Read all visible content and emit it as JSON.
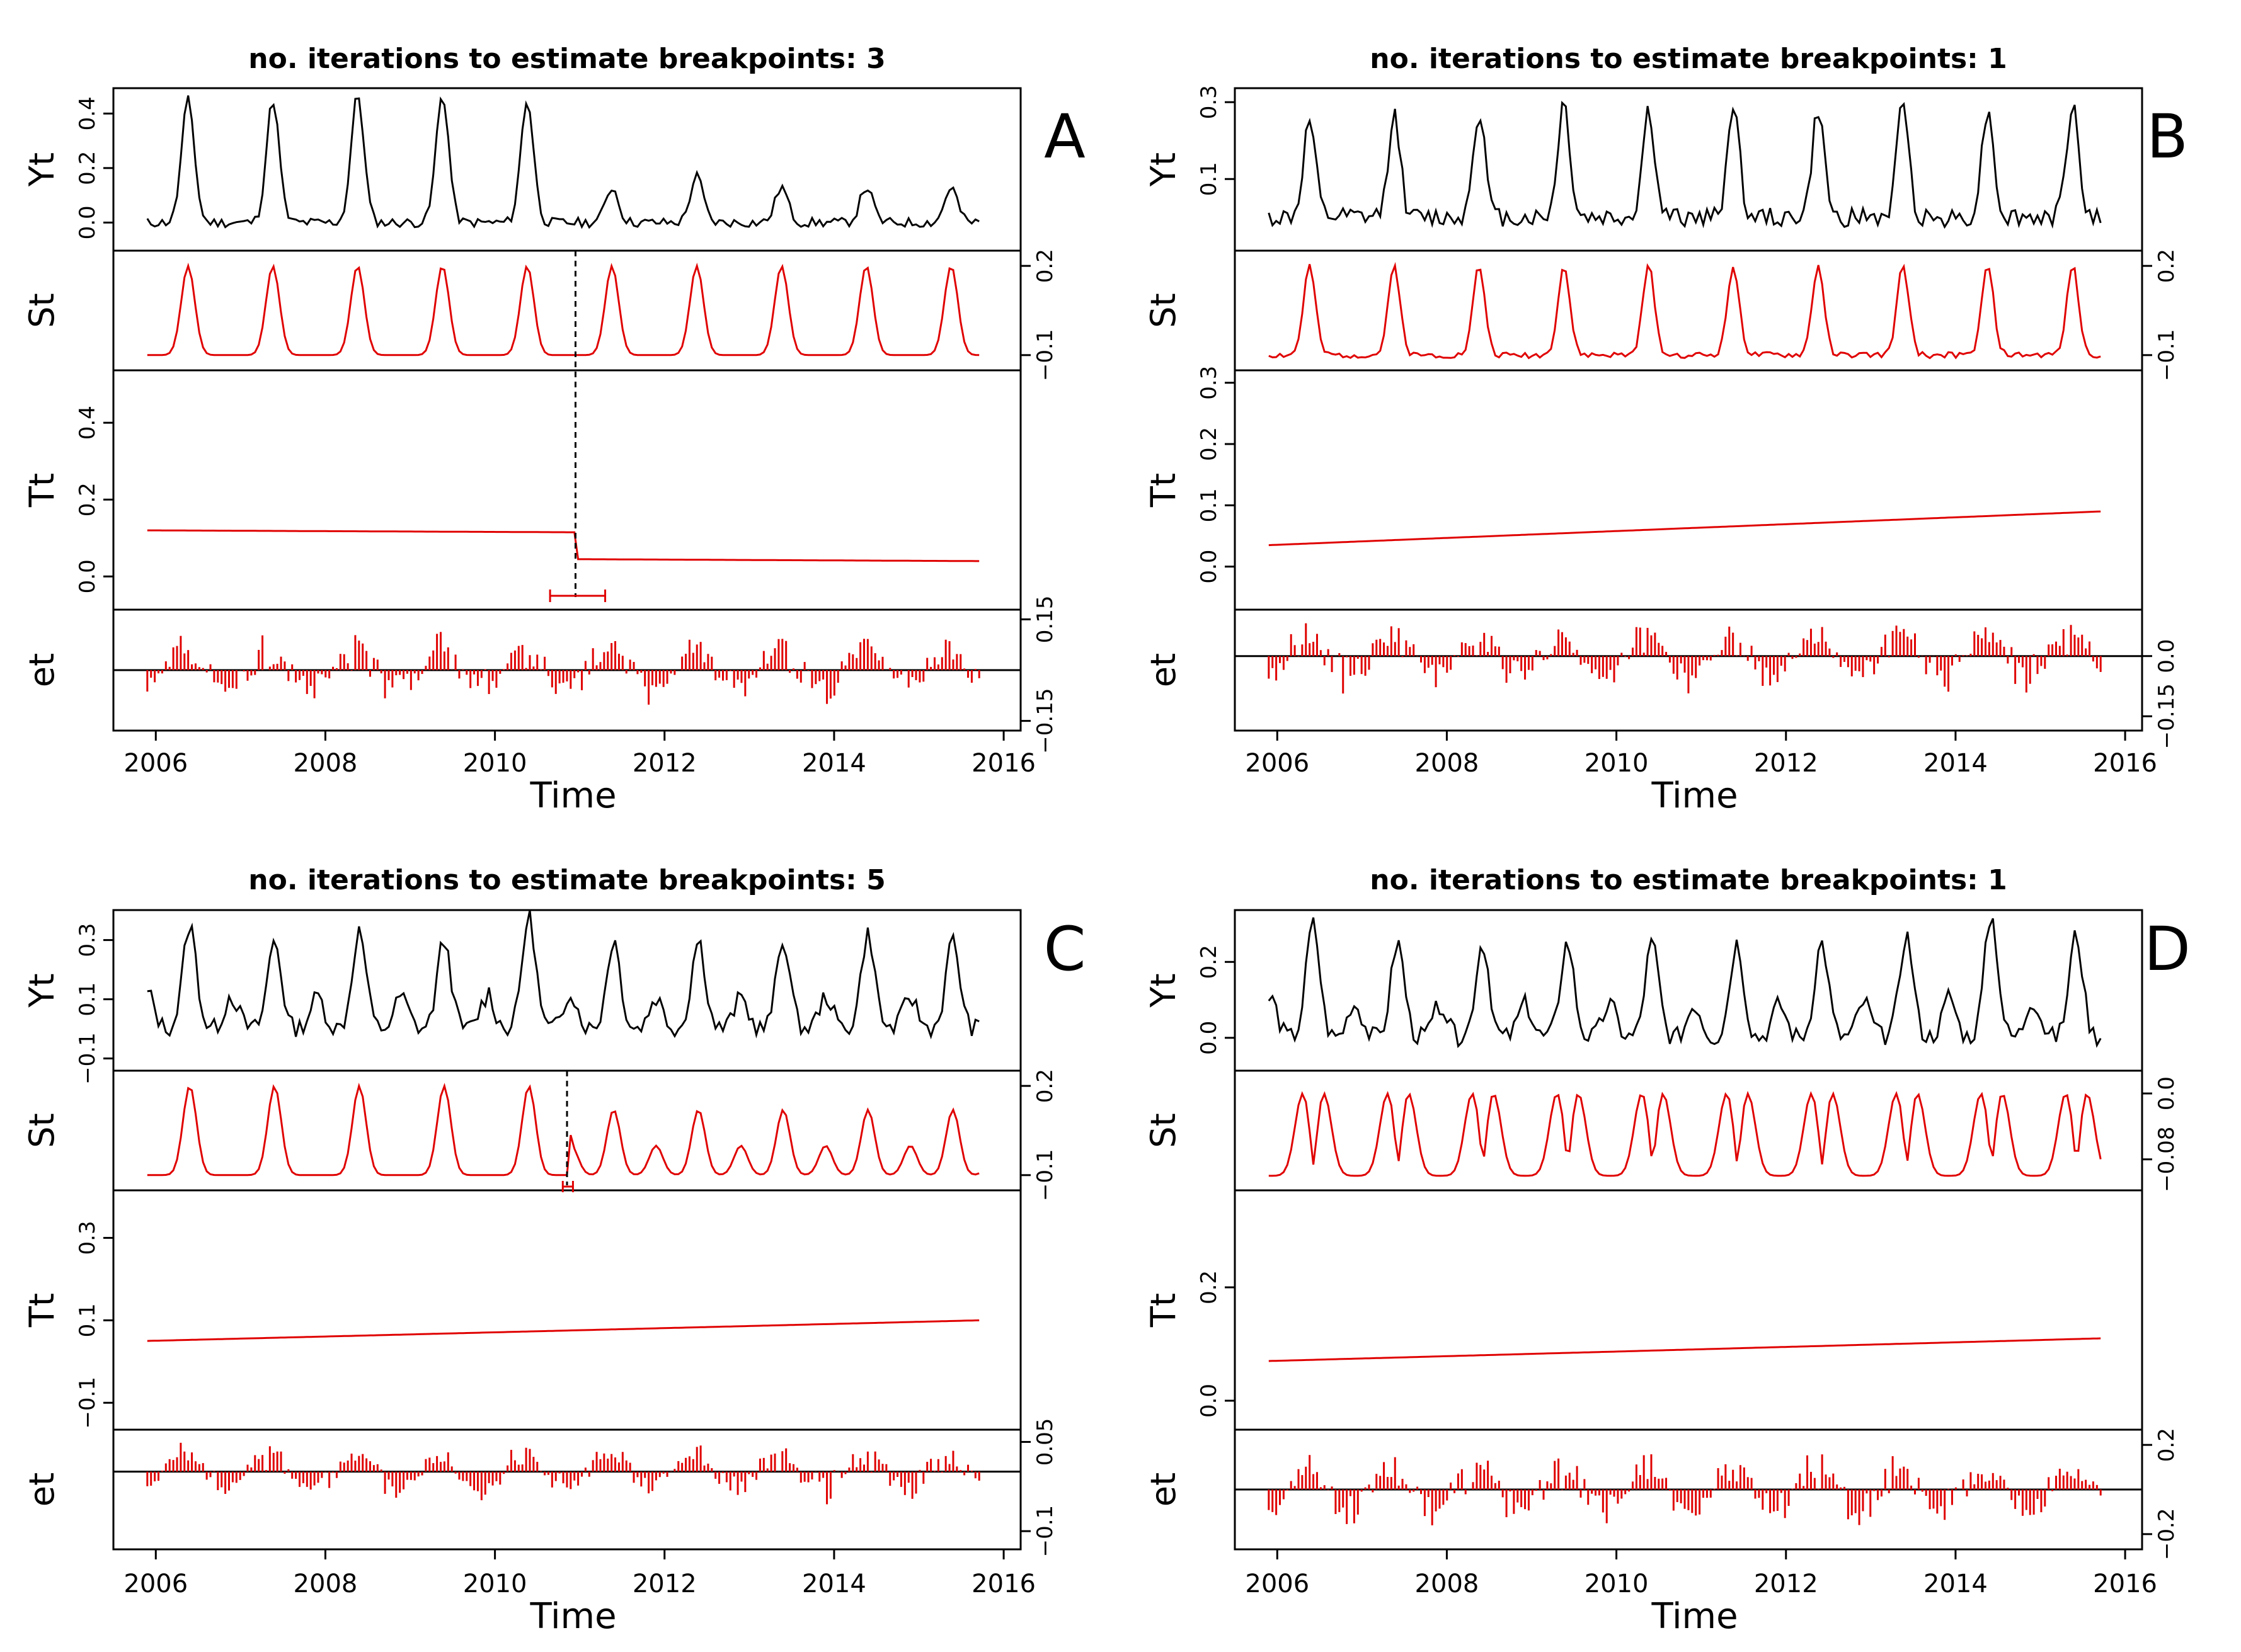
{
  "chart_data": [
    {
      "panel": "A",
      "type": "line",
      "title": "no. iterations to estimate breakpoints: 3",
      "xlabel": "Time",
      "xlim": [
        2005.5,
        2016.2
      ],
      "x_ticks": [
        2006,
        2008,
        2010,
        2012,
        2014,
        2016
      ],
      "start": 2005.9,
      "end": 2015.75,
      "step": 0.0438,
      "subplots": [
        {
          "label": "Yt",
          "side": "left",
          "ylim": [
            -0.08,
            0.47
          ],
          "ticks": [
            0.0,
            0.2,
            0.4
          ],
          "series": {
            "style": "black-line",
            "mode": "seasonal",
            "amps": [
              0.45,
              0.45,
              0.47,
              0.47,
              0.45,
              0.13,
              0.17,
              0.13,
              0.13,
              0.13
            ],
            "base": 0.0,
            "peak": 0.38,
            "width": 0.075,
            "shape": "single",
            "noise": 0.018,
            "seed": 11
          }
        },
        {
          "label": "St",
          "side": "right",
          "ylim": [
            -0.13,
            0.23
          ],
          "ticks": [
            -0.1,
            0.2
          ],
          "series": {
            "style": "red-line",
            "mode": "seasonal",
            "amps": [
              0.3,
              0.3,
              0.3,
              0.3,
              0.3,
              0.3,
              0.3,
              0.3,
              0.3,
              0.3
            ],
            "base": -0.1,
            "peak": 0.38,
            "width": 0.08,
            "shape": "single",
            "noise": 0,
            "seed": 1
          }
        },
        {
          "label": "Tt",
          "side": "left",
          "ylim": [
            -0.07,
            0.52
          ],
          "ticks": [
            0.0,
            0.2,
            0.4
          ],
          "series": {
            "style": "red-line",
            "mode": "trend",
            "breaks": [
              {
                "x": 2010.95,
                "before": [
                  0.12,
                  0.115
                ],
                "after": [
                  0.045,
                  0.04
                ]
              }
            ]
          },
          "breakpoints": [
            {
              "x": 2010.95,
              "ci": [
                2010.65,
                2011.3
              ]
            }
          ]
        },
        {
          "label": "et",
          "side": "right",
          "ylim": [
            -0.16,
            0.16
          ],
          "ticks": [
            -0.15,
            0.15
          ],
          "series": {
            "style": "red-bars",
            "mode": "residual",
            "amp": 0.1,
            "seed": 21
          }
        }
      ]
    },
    {
      "panel": "B",
      "type": "line",
      "title": "no. iterations to estimate breakpoints: 1",
      "xlabel": "Time",
      "xlim": [
        2005.5,
        2016.2
      ],
      "x_ticks": [
        2006,
        2008,
        2010,
        2012,
        2014,
        2016
      ],
      "start": 2005.9,
      "end": 2015.75,
      "step": 0.0438,
      "subplots": [
        {
          "label": "Yt",
          "side": "left",
          "ylim": [
            -0.07,
            0.32
          ],
          "ticks": [
            0.1,
            0.3
          ],
          "series": {
            "style": "black-line",
            "mode": "seasonal",
            "amps": [
              0.25,
              0.27,
              0.28,
              0.3,
              0.28,
              0.3,
              0.28,
              0.3,
              0.28,
              0.3
            ],
            "base": 0.0,
            "peak": 0.38,
            "width": 0.07,
            "shape": "single",
            "noise": 0.025,
            "seed": 12
          }
        },
        {
          "label": "St",
          "side": "right",
          "ylim": [
            -0.13,
            0.23
          ],
          "ticks": [
            -0.1,
            0.2
          ],
          "series": {
            "style": "red-line",
            "mode": "seasonal",
            "amps": [
              0.3,
              0.3,
              0.3,
              0.3,
              0.3,
              0.3,
              0.3,
              0.3,
              0.3,
              0.3
            ],
            "base": -0.1,
            "peak": 0.38,
            "width": 0.07,
            "shape": "single",
            "noise": 0.01,
            "seed": 2
          }
        },
        {
          "label": "Tt",
          "side": "left",
          "ylim": [
            -0.06,
            0.31
          ],
          "ticks": [
            0.0,
            0.1,
            0.2,
            0.3
          ],
          "series": {
            "style": "red-line",
            "mode": "trend",
            "breaks": [],
            "line": [
              0.035,
              0.09
            ]
          }
        },
        {
          "label": "et",
          "side": "right",
          "ylim": [
            -0.17,
            0.1
          ],
          "ticks": [
            -0.15,
            0.0
          ],
          "series": {
            "style": "red-bars",
            "mode": "residual",
            "amp": 0.08,
            "seed": 22
          }
        }
      ]
    },
    {
      "panel": "C",
      "type": "line",
      "title": "no. iterations to estimate breakpoints: 5",
      "xlabel": "Time",
      "xlim": [
        2005.5,
        2016.2
      ],
      "x_ticks": [
        2006,
        2008,
        2010,
        2012,
        2014,
        2016
      ],
      "start": 2005.9,
      "end": 2015.75,
      "step": 0.0438,
      "subplots": [
        {
          "label": "Yt",
          "side": "left",
          "ylim": [
            -0.12,
            0.38
          ],
          "ticks": [
            -0.1,
            0.1,
            0.3
          ],
          "series": {
            "style": "black-line",
            "mode": "seasonal",
            "amps": [
              0.35,
              0.3,
              0.33,
              0.3,
              0.38,
              0.3,
              0.3,
              0.3,
              0.32,
              0.3
            ],
            "base": 0.0,
            "peak": 0.4,
            "width": 0.08,
            "shape": "double",
            "noise": 0.03,
            "seed": 13
          }
        },
        {
          "label": "St",
          "side": "right",
          "ylim": [
            -0.13,
            0.23
          ],
          "ticks": [
            -0.1,
            0.2
          ],
          "series": {
            "style": "red-line",
            "mode": "seasonal",
            "amps": [
              0.3,
              0.3,
              0.3,
              0.3,
              0.3,
              0.22,
              0.22,
              0.22,
              0.22,
              0.22
            ],
            "base": -0.1,
            "peak": 0.4,
            "width": 0.08,
            "shape": "single",
            "noise": 0,
            "seed": 3,
            "regime2": 2010.85
          }
        },
        {
          "label": "Tt",
          "side": "left",
          "ylim": [
            -0.15,
            0.4
          ],
          "ticks": [
            -0.1,
            0.1,
            0.3
          ],
          "series": {
            "style": "red-line",
            "mode": "trend",
            "breaks": [],
            "line": [
              0.05,
              0.1
            ]
          }
        },
        {
          "label": "et",
          "side": "right",
          "ylim": [
            -0.12,
            0.06
          ],
          "ticks": [
            -0.1,
            0.05
          ],
          "series": {
            "style": "red-bars",
            "mode": "residual",
            "amp": 0.045,
            "seed": 23
          }
        }
      ],
      "st_breakpoint": {
        "x": 2010.85,
        "ci": [
          2010.8,
          2010.92
        ]
      }
    },
    {
      "panel": "D",
      "type": "line",
      "title": "no. iterations to estimate breakpoints: 1",
      "xlabel": "Time",
      "xlim": [
        2005.5,
        2016.2
      ],
      "x_ticks": [
        2006,
        2008,
        2010,
        2012,
        2014,
        2016
      ],
      "start": 2005.9,
      "end": 2015.75,
      "step": 0.0438,
      "subplots": [
        {
          "label": "Yt",
          "side": "left",
          "ylim": [
            -0.07,
            0.32
          ],
          "ticks": [
            0.0,
            0.2
          ],
          "series": {
            "style": "black-line",
            "mode": "seasonal",
            "amps": [
              0.3,
              0.25,
              0.25,
              0.25,
              0.25,
              0.25,
              0.25,
              0.27,
              0.32,
              0.27
            ],
            "base": 0.0,
            "peak": 0.42,
            "width": 0.08,
            "shape": "double",
            "noise": 0.025,
            "seed": 14
          }
        },
        {
          "label": "St",
          "side": "right",
          "ylim": [
            -0.11,
            0.02
          ],
          "ticks": [
            -0.08,
            0.0
          ],
          "series": {
            "style": "red-line",
            "mode": "bimodal",
            "base": -0.1,
            "top": 0.0,
            "seed": 4
          }
        },
        {
          "label": "Tt",
          "side": "left",
          "ylim": [
            -0.04,
            0.36
          ],
          "ticks": [
            0.0,
            0.2
          ],
          "series": {
            "style": "red-line",
            "mode": "trend",
            "breaks": [],
            "line": [
              0.07,
              0.11
            ]
          }
        },
        {
          "label": "et",
          "side": "right",
          "ylim": [
            -0.24,
            0.24
          ],
          "ticks": [
            -0.2,
            0.2
          ],
          "series": {
            "style": "red-bars",
            "mode": "residual",
            "amp": 0.15,
            "seed": 24
          }
        }
      ]
    }
  ]
}
